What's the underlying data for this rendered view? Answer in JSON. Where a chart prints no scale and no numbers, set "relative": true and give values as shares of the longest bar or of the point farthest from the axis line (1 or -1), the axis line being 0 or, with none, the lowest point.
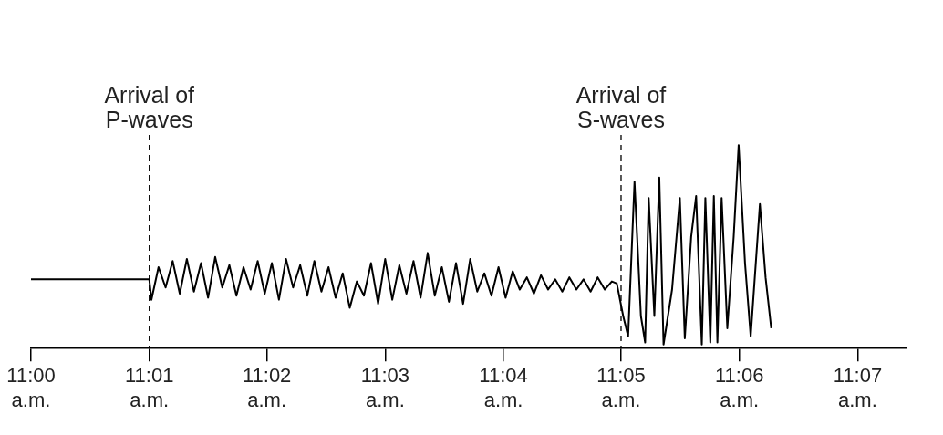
{
  "chart_data": {
    "type": "line",
    "relative": true,
    "legend": false,
    "marker": "none",
    "line_style": "solid",
    "xlim": [
      11,
      11.1236
    ],
    "xticks": [
      {
        "value": 11,
        "label": "11:00 a.m."
      },
      {
        "value": 11.0167,
        "label": "11:01 a.m."
      },
      {
        "value": 11.0333,
        "label": "11:02 a.m."
      },
      {
        "value": 11.05,
        "label": "11:03 a.m."
      },
      {
        "value": 11.0667,
        "label": "11:04 a.m."
      },
      {
        "value": 11.0833,
        "label": "11:05 a.m."
      },
      {
        "value": 11.1,
        "label": "11:06 a.m."
      },
      {
        "value": 11.1167,
        "label": "11:07 a.m."
      }
    ],
    "ref_lines": [
      {
        "axis": "x",
        "value": 11.0167,
        "label": "Arrival of P-waves",
        "line_style": "dashed"
      },
      {
        "axis": "x",
        "value": 11.0833,
        "label": "Arrival of S-waves",
        "line_style": "dashed"
      }
    ],
    "series": [
      {
        "color": "#000000",
        "x": [
          11,
          11.0167,
          11.017,
          11.018,
          11.019,
          11.02,
          11.021,
          11.022,
          11.023,
          11.024,
          11.025,
          11.026,
          11.027,
          11.028,
          11.029,
          11.03,
          11.031,
          11.032,
          11.033,
          11.034,
          11.035,
          11.036,
          11.037,
          11.038,
          11.039,
          11.04,
          11.041,
          11.042,
          11.043,
          11.044,
          11.045,
          11.046,
          11.047,
          11.048,
          11.049,
          11.05,
          11.051,
          11.052,
          11.053,
          11.054,
          11.055,
          11.056,
          11.057,
          11.058,
          11.059,
          11.06,
          11.061,
          11.062,
          11.063,
          11.064,
          11.065,
          11.066,
          11.067,
          11.068,
          11.069,
          11.07,
          11.071,
          11.072,
          11.073,
          11.074,
          11.075,
          11.076,
          11.077,
          11.078,
          11.079,
          11.08,
          11.081,
          11.082,
          11.0827,
          11.0836,
          11.0843,
          11.0852,
          11.0861,
          11.0867,
          11.0872,
          11.088,
          11.0887,
          11.0893,
          11.0905,
          11.0916,
          11.0923,
          11.0932,
          11.0939,
          11.0947,
          11.0952,
          11.0959,
          11.0964,
          11.0969,
          11.0975,
          11.0983,
          11.0992,
          11.0999,
          11.1008,
          11.1016,
          11.1029,
          11.1037,
          11.1045
        ],
        "values": [
          0.34,
          0.34,
          0.24,
          0.4,
          0.3,
          0.43,
          0.27,
          0.44,
          0.28,
          0.42,
          0.25,
          0.45,
          0.3,
          0.41,
          0.26,
          0.4,
          0.29,
          0.43,
          0.27,
          0.42,
          0.24,
          0.44,
          0.3,
          0.41,
          0.26,
          0.43,
          0.28,
          0.4,
          0.25,
          0.37,
          0.2,
          0.33,
          0.26,
          0.42,
          0.22,
          0.44,
          0.24,
          0.41,
          0.27,
          0.43,
          0.25,
          0.47,
          0.26,
          0.4,
          0.23,
          0.42,
          0.22,
          0.44,
          0.28,
          0.37,
          0.26,
          0.4,
          0.25,
          0.38,
          0.29,
          0.35,
          0.27,
          0.36,
          0.29,
          0.34,
          0.28,
          0.35,
          0.29,
          0.34,
          0.28,
          0.35,
          0.29,
          0.33,
          0.32,
          0.16,
          0.06,
          0.82,
          0.16,
          0.03,
          0.74,
          0.16,
          0.84,
          0.02,
          0.29,
          0.74,
          0.05,
          0.55,
          0.75,
          0.02,
          0.74,
          0.03,
          0.75,
          0.03,
          0.74,
          0.1,
          0.55,
          1,
          0.42,
          0.06,
          0.71,
          0.35,
          0.1
        ]
      }
    ]
  }
}
